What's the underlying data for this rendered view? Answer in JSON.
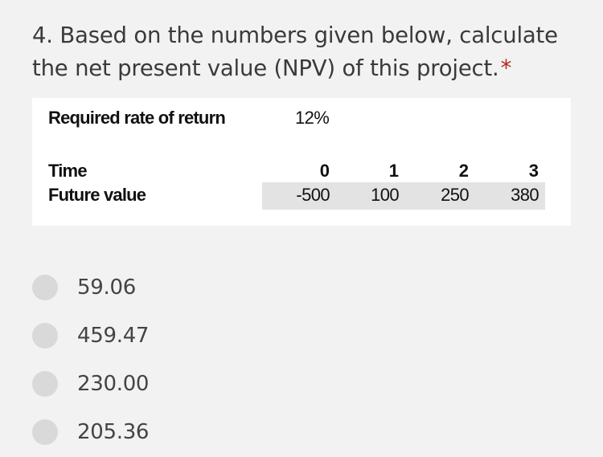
{
  "question": {
    "title": "4. Based on the numbers given below, calculate the net present value (NPV) of this project.",
    "required_marker": "*"
  },
  "figure": {
    "rate_label": "Required rate of return",
    "rate_value": "12%",
    "time_label": "Time",
    "future_value_label": "Future value",
    "periods": [
      "0",
      "1",
      "2",
      "3"
    ],
    "future_values": [
      "-500",
      "100",
      "250",
      "380"
    ]
  },
  "options": [
    {
      "label": "59.06",
      "selected": false
    },
    {
      "label": "459.47",
      "selected": false
    },
    {
      "label": "230.00",
      "selected": false
    },
    {
      "label": "205.36",
      "selected": false
    }
  ],
  "colors": {
    "background": "#f2f2f2",
    "required_star": "#b3261e",
    "radio_unselected": "#d9d9d9",
    "value_band": "#e3e3e3"
  }
}
